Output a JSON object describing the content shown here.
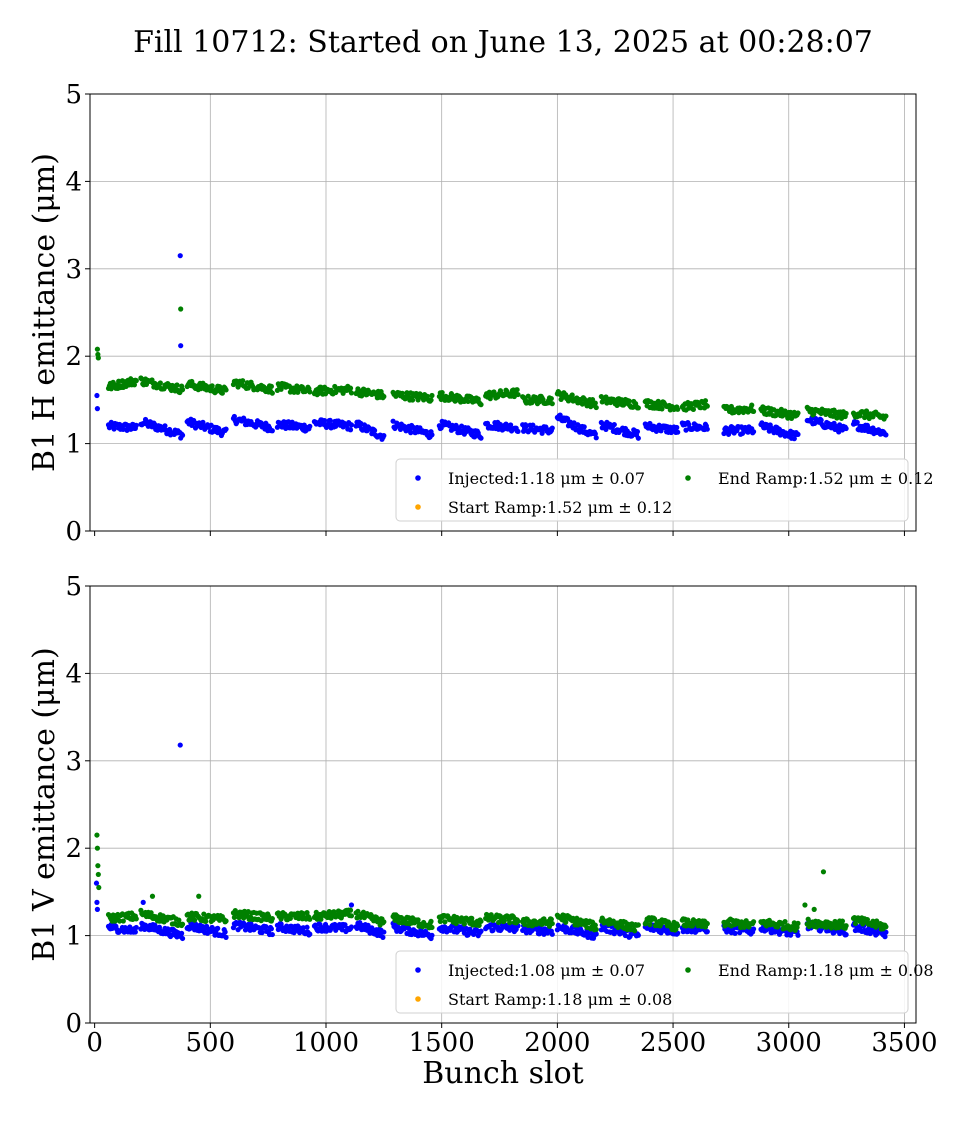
{
  "figure": {
    "title": "Fill 10712: Started on June 13, 2025 at 00:28:07",
    "xlabel": "Bunch slot"
  },
  "colors": {
    "injected": "#0000ff",
    "start_ramp": "#ffa500",
    "end_ramp": "#008000",
    "grid": "#b0b0b0"
  },
  "chart_data": [
    {
      "type": "scatter",
      "ylabel": "B1 H emittance (μm)",
      "xlim": [
        -20,
        3550
      ],
      "ylim": [
        0,
        5
      ],
      "xticks": [
        0,
        500,
        1000,
        1500,
        2000,
        2500,
        3000,
        3500
      ],
      "yticks": [
        0,
        1,
        2,
        3,
        4,
        5
      ],
      "show_x_tick_labels": false,
      "grid": true,
      "legend_position": "lower-right",
      "legend": [
        {
          "series": "injected",
          "text": "Injected:1.18 μm ± 0.07"
        },
        {
          "series": "start_ramp",
          "text": "Start Ramp:1.52 μm ± 0.12"
        },
        {
          "series": "end_ramp",
          "text": "End Ramp:1.52 μm ± 0.12"
        }
      ],
      "outliers": {
        "injected": [
          [
            10,
            1.55
          ],
          [
            12,
            1.4
          ],
          [
            370,
            3.15
          ],
          [
            372,
            2.12
          ]
        ],
        "end_ramp": [
          [
            12,
            2.08
          ],
          [
            14,
            2.02
          ],
          [
            16,
            1.98
          ],
          [
            372,
            2.54
          ]
        ]
      },
      "series": [
        {
          "key": "injected",
          "trains": [
            [
              60,
              180,
              1.2,
              1.18
            ],
            [
              200,
              380,
              1.25,
              1.1
            ],
            [
              400,
              570,
              1.25,
              1.12
            ],
            [
              600,
              770,
              1.28,
              1.18
            ],
            [
              790,
              930,
              1.22,
              1.18
            ],
            [
              950,
              1110,
              1.24,
              1.2
            ],
            [
              1130,
              1250,
              1.22,
              1.08
            ],
            [
              1290,
              1460,
              1.22,
              1.1
            ],
            [
              1490,
              1670,
              1.22,
              1.1
            ],
            [
              1690,
              1830,
              1.22,
              1.18
            ],
            [
              1850,
              1980,
              1.18,
              1.15
            ],
            [
              2000,
              2170,
              1.3,
              1.08
            ],
            [
              2190,
              2350,
              1.22,
              1.1
            ],
            [
              2380,
              2520,
              1.2,
              1.15
            ],
            [
              2540,
              2650,
              1.2,
              1.18
            ],
            [
              2720,
              2850,
              1.15,
              1.15
            ],
            [
              2880,
              3040,
              1.2,
              1.08
            ],
            [
              3080,
              3250,
              1.28,
              1.15
            ],
            [
              3280,
              3420,
              1.22,
              1.12
            ]
          ]
        },
        {
          "key": "end_ramp",
          "trains": [
            [
              60,
              180,
              1.65,
              1.72
            ],
            [
              200,
              380,
              1.72,
              1.62
            ],
            [
              400,
              570,
              1.68,
              1.6
            ],
            [
              600,
              770,
              1.7,
              1.62
            ],
            [
              790,
              930,
              1.65,
              1.6
            ],
            [
              950,
              1110,
              1.6,
              1.62
            ],
            [
              1130,
              1250,
              1.6,
              1.55
            ],
            [
              1290,
              1460,
              1.56,
              1.52
            ],
            [
              1490,
              1670,
              1.55,
              1.48
            ],
            [
              1690,
              1830,
              1.55,
              1.58
            ],
            [
              1850,
              1980,
              1.5,
              1.5
            ],
            [
              2000,
              2170,
              1.56,
              1.45
            ],
            [
              2190,
              2350,
              1.5,
              1.45
            ],
            [
              2380,
              2520,
              1.46,
              1.42
            ],
            [
              2540,
              2650,
              1.42,
              1.45
            ],
            [
              2720,
              2850,
              1.38,
              1.4
            ],
            [
              2880,
              3040,
              1.38,
              1.32
            ],
            [
              3080,
              3250,
              1.38,
              1.32
            ],
            [
              3280,
              3420,
              1.35,
              1.3
            ]
          ]
        }
      ]
    },
    {
      "type": "scatter",
      "ylabel": "B1 V emittance (μm)",
      "xlim": [
        -20,
        3550
      ],
      "ylim": [
        0,
        5
      ],
      "xticks": [
        0,
        500,
        1000,
        1500,
        2000,
        2500,
        3000,
        3500
      ],
      "yticks": [
        0,
        1,
        2,
        3,
        4,
        5
      ],
      "show_x_tick_labels": true,
      "grid": true,
      "legend_position": "lower-right",
      "legend": [
        {
          "series": "injected",
          "text": "Injected:1.08 μm ± 0.07"
        },
        {
          "series": "start_ramp",
          "text": "Start Ramp:1.18 μm ± 0.08"
        },
        {
          "series": "end_ramp",
          "text": "End Ramp:1.18 μm ± 0.08"
        }
      ],
      "outliers": {
        "injected": [
          [
            8,
            1.6
          ],
          [
            10,
            1.38
          ],
          [
            12,
            1.3
          ],
          [
            370,
            3.18
          ],
          [
            210,
            1.38
          ],
          [
            1110,
            1.35
          ]
        ],
        "end_ramp": [
          [
            10,
            2.15
          ],
          [
            12,
            2.0
          ],
          [
            14,
            1.8
          ],
          [
            16,
            1.7
          ],
          [
            18,
            1.55
          ],
          [
            3150,
            1.73
          ],
          [
            3070,
            1.35
          ],
          [
            3110,
            1.3
          ],
          [
            250,
            1.45
          ],
          [
            450,
            1.45
          ]
        ]
      },
      "series": [
        {
          "key": "injected",
          "trains": [
            [
              60,
              180,
              1.1,
              1.05
            ],
            [
              200,
              380,
              1.12,
              1.0
            ],
            [
              400,
              570,
              1.12,
              1.02
            ],
            [
              600,
              770,
              1.12,
              1.05
            ],
            [
              790,
              930,
              1.1,
              1.05
            ],
            [
              950,
              1110,
              1.1,
              1.08
            ],
            [
              1130,
              1250,
              1.12,
              1.02
            ],
            [
              1290,
              1460,
              1.1,
              1.0
            ],
            [
              1490,
              1670,
              1.1,
              1.02
            ],
            [
              1690,
              1830,
              1.1,
              1.08
            ],
            [
              1850,
              1980,
              1.08,
              1.05
            ],
            [
              2000,
              2170,
              1.1,
              1.0
            ],
            [
              2190,
              2350,
              1.1,
              1.0
            ],
            [
              2380,
              2520,
              1.1,
              1.05
            ],
            [
              2540,
              2650,
              1.08,
              1.08
            ],
            [
              2720,
              2850,
              1.08,
              1.05
            ],
            [
              2880,
              3040,
              1.1,
              1.02
            ],
            [
              3080,
              3250,
              1.12,
              1.05
            ],
            [
              3280,
              3420,
              1.1,
              1.02
            ]
          ]
        },
        {
          "key": "end_ramp",
          "trains": [
            [
              60,
              180,
              1.2,
              1.22
            ],
            [
              200,
              380,
              1.25,
              1.15
            ],
            [
              400,
              570,
              1.22,
              1.18
            ],
            [
              600,
              770,
              1.25,
              1.2
            ],
            [
              790,
              930,
              1.22,
              1.22
            ],
            [
              950,
              1110,
              1.22,
              1.25
            ],
            [
              1130,
              1250,
              1.25,
              1.15
            ],
            [
              1290,
              1460,
              1.2,
              1.12
            ],
            [
              1490,
              1670,
              1.2,
              1.15
            ],
            [
              1690,
              1830,
              1.2,
              1.18
            ],
            [
              1850,
              1980,
              1.15,
              1.15
            ],
            [
              2000,
              2170,
              1.22,
              1.1
            ],
            [
              2190,
              2350,
              1.18,
              1.08
            ],
            [
              2380,
              2520,
              1.18,
              1.1
            ],
            [
              2540,
              2650,
              1.15,
              1.12
            ],
            [
              2720,
              2850,
              1.15,
              1.12
            ],
            [
              2880,
              3040,
              1.15,
              1.1
            ],
            [
              3080,
              3250,
              1.15,
              1.12
            ],
            [
              3280,
              3420,
              1.18,
              1.1
            ]
          ]
        }
      ]
    }
  ]
}
